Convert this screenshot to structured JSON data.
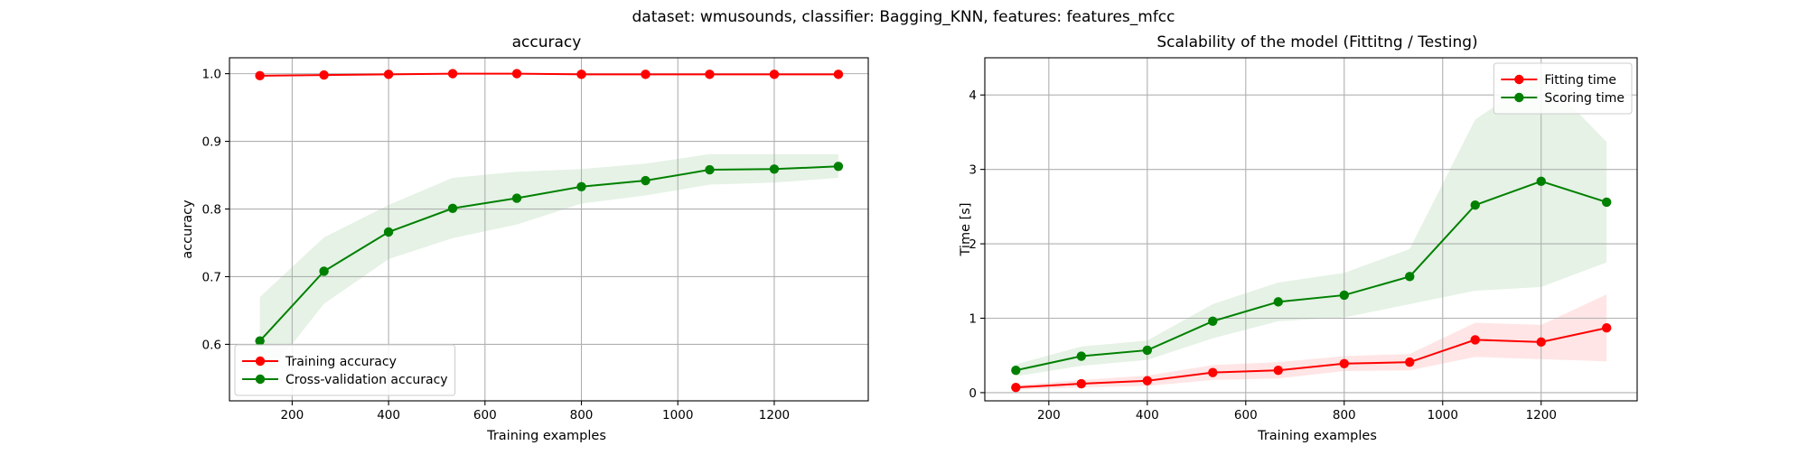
{
  "suptitle": "dataset: wmusounds, classifier: Bagging_KNN, features: features_mfcc",
  "chart_data": [
    {
      "type": "line",
      "title": "accuracy",
      "xlabel": "Training examples",
      "ylabel": "accuracy",
      "xlim": [
        70,
        1395
      ],
      "ylim": [
        0.5165,
        1.0235
      ],
      "xticks": [
        200,
        400,
        600,
        800,
        1000,
        1200
      ],
      "yticks": [
        0.6,
        0.7,
        0.8,
        0.9,
        1.0
      ],
      "ytick_labels": [
        "0.6",
        "0.7",
        "0.8",
        "0.9",
        "1.0"
      ],
      "grid": true,
      "legend": "lower-left",
      "x": [
        133,
        266,
        400,
        533,
        666,
        800,
        933,
        1066,
        1200,
        1333
      ],
      "series": [
        {
          "name": "Training accuracy",
          "color": "#ff0000",
          "values": [
            0.997,
            0.998,
            0.999,
            1.0,
            1.0,
            0.999,
            0.999,
            0.999,
            0.999,
            0.999
          ],
          "band_low": [
            0.996,
            0.997,
            0.998,
            0.999,
            0.999,
            0.998,
            0.998,
            0.998,
            0.998,
            0.998
          ],
          "band_high": [
            0.998,
            0.999,
            1.0,
            1.001,
            1.001,
            1.0,
            1.0,
            1.0,
            1.0,
            1.0
          ]
        },
        {
          "name": "Cross-validation accuracy",
          "color": "#008000",
          "values": [
            0.605,
            0.708,
            0.766,
            0.801,
            0.816,
            0.833,
            0.842,
            0.858,
            0.859,
            0.863
          ],
          "band_low": [
            0.54,
            0.66,
            0.726,
            0.757,
            0.777,
            0.808,
            0.82,
            0.836,
            0.839,
            0.846
          ],
          "band_high": [
            0.67,
            0.758,
            0.806,
            0.846,
            0.855,
            0.859,
            0.867,
            0.881,
            0.881,
            0.881
          ]
        }
      ]
    },
    {
      "type": "line",
      "title": "Scalability of the model (Fittitng / Testing)",
      "xlabel": "Training examples",
      "ylabel": "Time [s]",
      "xlim": [
        70,
        1395
      ],
      "ylim": [
        -0.11,
        4.5
      ],
      "xticks": [
        200,
        400,
        600,
        800,
        1000,
        1200
      ],
      "yticks": [
        0,
        1,
        2,
        3,
        4
      ],
      "ytick_labels": [
        "0",
        "1",
        "2",
        "3",
        "4"
      ],
      "grid": true,
      "legend": "upper-right",
      "x": [
        133,
        266,
        400,
        533,
        666,
        800,
        933,
        1066,
        1200,
        1333
      ],
      "series": [
        {
          "name": "Fitting time",
          "color": "#ff0000",
          "values": [
            0.07,
            0.12,
            0.16,
            0.27,
            0.3,
            0.39,
            0.41,
            0.71,
            0.68,
            0.87
          ],
          "band_low": [
            0.04,
            0.07,
            0.09,
            0.17,
            0.19,
            0.29,
            0.3,
            0.48,
            0.45,
            0.42
          ],
          "band_high": [
            0.1,
            0.17,
            0.23,
            0.37,
            0.41,
            0.49,
            0.52,
            0.94,
            0.91,
            1.32
          ]
        },
        {
          "name": "Scoring time",
          "color": "#008000",
          "values": [
            0.3,
            0.49,
            0.57,
            0.96,
            1.22,
            1.31,
            1.56,
            2.52,
            2.84,
            2.56
          ],
          "band_low": [
            0.22,
            0.36,
            0.44,
            0.73,
            0.96,
            1.01,
            1.19,
            1.37,
            1.42,
            1.75
          ],
          "band_high": [
            0.38,
            0.62,
            0.7,
            1.19,
            1.48,
            1.61,
            1.93,
            3.67,
            4.27,
            3.37
          ]
        }
      ]
    }
  ]
}
